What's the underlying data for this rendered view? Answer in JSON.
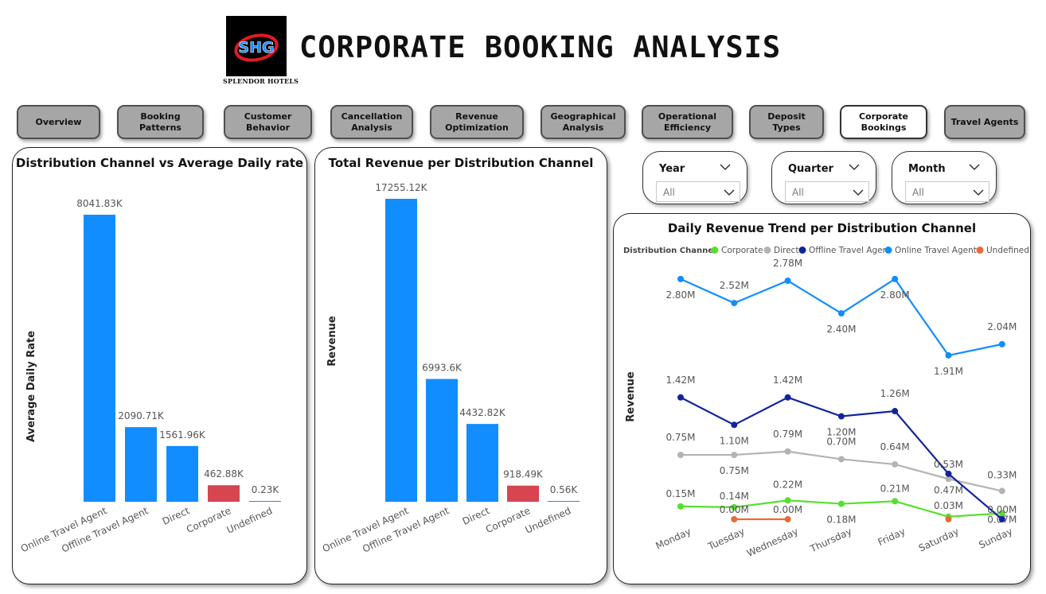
{
  "header": {
    "title": "CORPORATE BOOKING ANALYSIS",
    "logo_text": "SHG",
    "logo_caption": "SPLENDOR HOTELS"
  },
  "nav": [
    {
      "label": "Overview",
      "active": false
    },
    {
      "label": "Booking Patterns",
      "active": false
    },
    {
      "label": "Customer Behavior",
      "active": false
    },
    {
      "label": "Cancellation Analysis",
      "active": false
    },
    {
      "label": "Revenue Optimization",
      "active": false
    },
    {
      "label": "Geographical Analysis",
      "active": false
    },
    {
      "label": "Operational Efficiency",
      "active": false
    },
    {
      "label": "Deposit Types",
      "active": false
    },
    {
      "label": "Corporate Bookings",
      "active": true
    },
    {
      "label": "Travel Agents",
      "active": false
    }
  ],
  "slicers": [
    {
      "label": "Year",
      "value": "All"
    },
    {
      "label": "Quarter",
      "value": "All"
    },
    {
      "label": "Month",
      "value": "All"
    }
  ],
  "colors": {
    "blue": "#118DFF",
    "red": "#D64550",
    "corporate": "#55E02D",
    "direct": "#B3B3B3",
    "offline": "#12239E",
    "online": "#118DFF",
    "undefined": "#E66C37"
  },
  "chart_data": [
    {
      "type": "bar",
      "title": "Distribution Channel vs Average Daily rate",
      "ylabel": "Average Daily Rate",
      "xlabel": "",
      "categories": [
        "Online Travel Agent",
        "Offline Travel Agent",
        "Direct",
        "Corporate",
        "Undefined"
      ],
      "values": [
        8041.83,
        2090.71,
        1561.96,
        462.88,
        0.23
      ],
      "data_labels": [
        "8041.83K",
        "2090.71K",
        "1561.96K",
        "462.88K",
        "0.23K"
      ],
      "highlight": "Corporate",
      "grid": false
    },
    {
      "type": "bar",
      "title": "Total Revenue per Distribution Channel",
      "ylabel": "Revenue",
      "xlabel": "",
      "categories": [
        "Online Travel Agent",
        "Offline Travel Agent",
        "Direct",
        "Corporate",
        "Undefined"
      ],
      "values": [
        17255.12,
        6993.6,
        4432.82,
        918.49,
        0.56
      ],
      "data_labels": [
        "17255.12K",
        "6993.6K",
        "4432.82K",
        "918.49K",
        "0.56K"
      ],
      "highlight": "Corporate",
      "grid": false
    },
    {
      "type": "line",
      "title": "Daily Revenue Trend per Distribution Channel",
      "ylabel": "Revenue",
      "xlabel": "",
      "legend_title": "Distribution Channel",
      "legend_position": "top-left",
      "categories": [
        "Monday",
        "Tuesday",
        "Wednesday",
        "Thursday",
        "Friday",
        "Saturday",
        "Sunday"
      ],
      "ylim": [
        0,
        3
      ],
      "series": [
        {
          "name": "Corporate",
          "values": [
            0.15,
            0.14,
            0.22,
            0.18,
            0.21,
            0.03,
            0.07
          ],
          "labels": [
            "0.15M",
            "0.14M",
            "0.22M",
            "0.18M",
            "0.21M",
            "0.03M",
            "0.07M"
          ]
        },
        {
          "name": "Direct",
          "values": [
            0.75,
            0.75,
            0.79,
            0.7,
            0.64,
            0.47,
            0.33
          ],
          "labels": [
            "0.75M",
            "0.75M",
            "0.79M",
            "0.70M",
            "0.64M",
            "0.47M",
            "0.33M"
          ]
        },
        {
          "name": "Offline Travel Agent",
          "values": [
            1.42,
            1.1,
            1.42,
            1.2,
            1.26,
            0.53,
            0.0
          ],
          "labels": [
            "1.42M",
            "1.10M",
            "1.42M",
            "1.20M",
            "1.26M",
            "0.53M",
            "0.00M"
          ]
        },
        {
          "name": "Online Travel Agent",
          "values": [
            2.8,
            2.52,
            2.78,
            2.4,
            2.8,
            1.91,
            2.04
          ],
          "labels": [
            "2.80M",
            "2.52M",
            "2.78M",
            "2.40M",
            "2.80M",
            "1.91M",
            "2.04M"
          ]
        },
        {
          "name": "Undefined",
          "values": [
            null,
            0.0,
            0.0,
            null,
            null,
            0.0,
            null
          ],
          "labels": [
            null,
            "0.00M",
            "0.00M",
            null,
            null,
            null,
            null
          ]
        }
      ],
      "grid": false
    }
  ]
}
